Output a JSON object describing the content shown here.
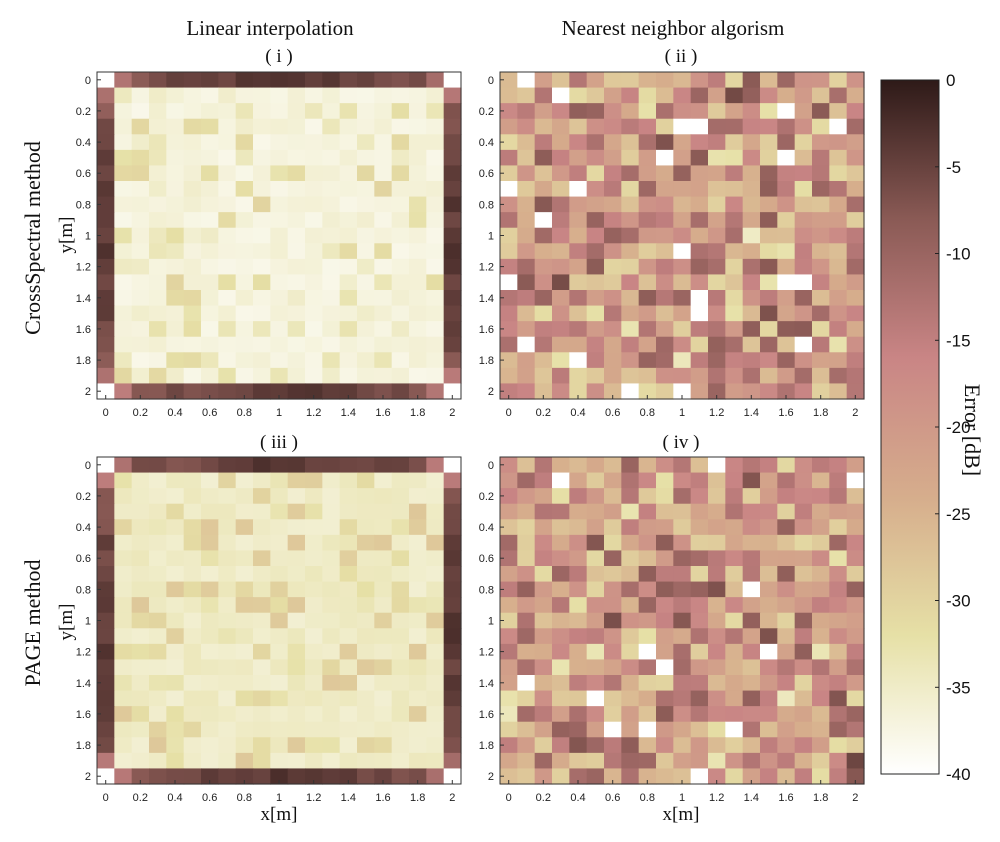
{
  "figure": {
    "column_titles": [
      "Linear interpolation",
      "Nearest neighbor algorism"
    ],
    "row_labels": [
      "CrossSpectral method",
      "PAGE method"
    ],
    "x_label": "x[m]",
    "y_label": "y[m]",
    "colorbar_label": "Error [dB]",
    "colorbar_ticks": [
      "0",
      "-5",
      "-10",
      "-15",
      "-20",
      "-25",
      "-30",
      "-35",
      "-40"
    ],
    "colormap_stops": [
      "#ffffff",
      "#e6e0a6",
      "#d6ad8c",
      "#c98585",
      "#8a5a55",
      "#2e1a18"
    ]
  },
  "chart_data": [
    {
      "type": "heatmap",
      "panel_label": "( i )",
      "x_ticks": [
        "0",
        "0.2",
        "0.4",
        "0.6",
        "0.8",
        "1",
        "1.2",
        "1.4",
        "1.6",
        "1.8",
        "2"
      ],
      "y_ticks": [
        "0",
        "0.2",
        "0.4",
        "0.6",
        "0.8",
        "1",
        "1.2",
        "1.4",
        "1.6",
        "1.8",
        "2"
      ],
      "xlim": [
        0,
        2
      ],
      "ylim": [
        0,
        2
      ],
      "grid_size": [
        21,
        21
      ],
      "clim": [
        -40,
        0
      ],
      "pattern": "interior mostly below -35 dB with scattered -30 to -35 dB patches; border rows and columns near 2 m aperture edges show -5 to -15 dB; corners white"
    },
    {
      "type": "heatmap",
      "panel_label": "( ii )",
      "x_ticks": [
        "0",
        "0.2",
        "0.4",
        "0.6",
        "0.8",
        "1",
        "1.2",
        "1.4",
        "1.6",
        "1.8",
        "2"
      ],
      "y_ticks": [
        "0",
        "0.2",
        "0.4",
        "0.6",
        "0.8",
        "1",
        "1.2",
        "1.4",
        "1.6",
        "1.8",
        "2"
      ],
      "xlim": [
        0,
        2
      ],
      "ylim": [
        0,
        2
      ],
      "grid_size": [
        21,
        21
      ],
      "clim": [
        -40,
        0
      ],
      "pattern": "speckled error roughly -10 to -35 dB, mean near -20 dB, with isolated white cells"
    },
    {
      "type": "heatmap",
      "panel_label": "( iii )",
      "x_ticks": [
        "0",
        "0.2",
        "0.4",
        "0.6",
        "0.8",
        "1",
        "1.2",
        "1.4",
        "1.6",
        "1.8",
        "2"
      ],
      "y_ticks": [
        "0",
        "0.2",
        "0.4",
        "0.6",
        "0.8",
        "1",
        "1.2",
        "1.4",
        "1.6",
        "1.8",
        "2"
      ],
      "xlim": [
        0,
        2
      ],
      "ylim": [
        0,
        2
      ],
      "grid_size": [
        21,
        21
      ],
      "clim": [
        -40,
        0
      ],
      "pattern": "interior mostly -30 to -40 dB, slightly more patches than (i); border rows and columns -5 to -15 dB"
    },
    {
      "type": "heatmap",
      "panel_label": "( iv )",
      "x_ticks": [
        "0",
        "0.2",
        "0.4",
        "0.6",
        "0.8",
        "1",
        "1.2",
        "1.4",
        "1.6",
        "1.8",
        "2"
      ],
      "y_ticks": [
        "0",
        "0.2",
        "0.4",
        "0.6",
        "0.8",
        "1",
        "1.2",
        "1.4",
        "1.6",
        "1.8",
        "2"
      ],
      "xlim": [
        0,
        2
      ],
      "ylim": [
        0,
        2
      ],
      "grid_size": [
        21,
        21
      ],
      "clim": [
        -40,
        0
      ],
      "pattern": "speckled error roughly -10 to -35 dB, mean near -20 dB, with isolated white cells"
    }
  ]
}
